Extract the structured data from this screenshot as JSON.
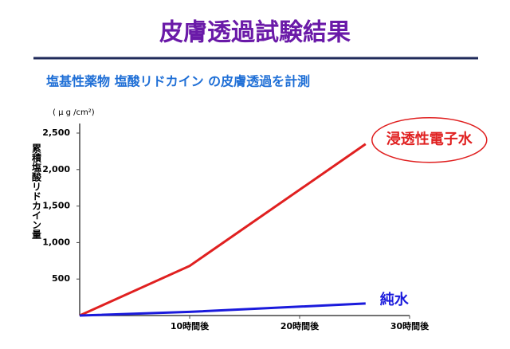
{
  "chart_data": {
    "type": "line",
    "title": "皮膚透過試験結果",
    "subtitle": "塩基性薬物 塩酸リドカイン の皮膚透過を計測",
    "y_unit": "( μ g /cm²)",
    "y_label": "累積塩酸リドカイン量",
    "x": [
      0,
      10,
      26
    ],
    "series": [
      {
        "name": "浸透性電子水",
        "color": "#e02020",
        "values": [
          0,
          680,
          2350
        ]
      },
      {
        "name": "純水",
        "color": "#1a1adc",
        "values": [
          0,
          50,
          165
        ]
      }
    ],
    "xlim": [
      0,
      30
    ],
    "xticks": [
      {
        "value": 10,
        "label": "10時間後"
      },
      {
        "value": 20,
        "label": "20時間後"
      },
      {
        "value": 30,
        "label": "30時間後"
      }
    ],
    "ylim": [
      0,
      2500
    ],
    "yticks": [
      500,
      {
        "value": 1000,
        "label": "1,000"
      },
      {
        "value": 1500,
        "label": "1,500"
      },
      {
        "value": 2000,
        "label": "2,000"
      },
      {
        "value": 2500,
        "label": "2,500"
      }
    ],
    "grid": false
  }
}
